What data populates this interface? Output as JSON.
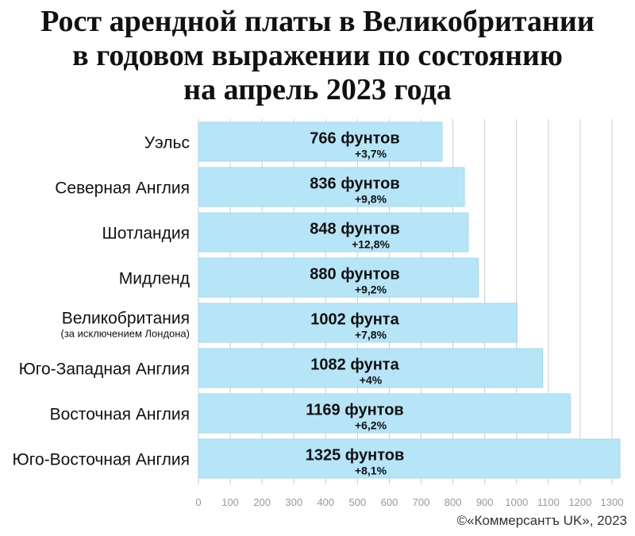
{
  "title_lines": [
    "Рост арендной платы в Великобритании",
    "в годовом выражении по состоянию",
    "на апрель 2023 года"
  ],
  "credit": "©«Коммерсантъ UK», 2023",
  "colors": {
    "bar": "#b7e5f8",
    "bar_stroke": "#a3d8ef",
    "grid": "#cccccc",
    "text": "#111111",
    "tick": "#999999"
  },
  "chart_data": {
    "type": "bar",
    "orientation": "horizontal",
    "categories": [
      "Уэльс",
      "Северная Англия",
      "Шотландия",
      "Мидленд",
      "Великобритания",
      "Юго-Западная Англия",
      "Восточная Англия",
      "Юго-Восточная Англия"
    ],
    "category_notes": [
      "",
      "",
      "",
      "",
      "(за исключением Лондона)",
      "",
      "",
      ""
    ],
    "values": [
      766,
      836,
      848,
      880,
      1002,
      1082,
      1169,
      1325
    ],
    "value_labels": [
      "766 фунтов",
      "836 фунтов",
      "848 фунтов",
      "880 фунтов",
      "1002 фунта",
      "1082 фунта",
      "1169 фунтов",
      "1325 фунтов"
    ],
    "change_labels": [
      "+3,7%",
      "+9,8%",
      "+12,8%",
      "+9,2%",
      "+7,8%",
      "+4%",
      "+6,2%",
      "+8,1%"
    ],
    "xticks": [
      0,
      100,
      200,
      300,
      400,
      500,
      600,
      700,
      800,
      900,
      1000,
      1100,
      1200,
      1300
    ],
    "xlim": [
      0,
      1300
    ],
    "grid": true
  }
}
